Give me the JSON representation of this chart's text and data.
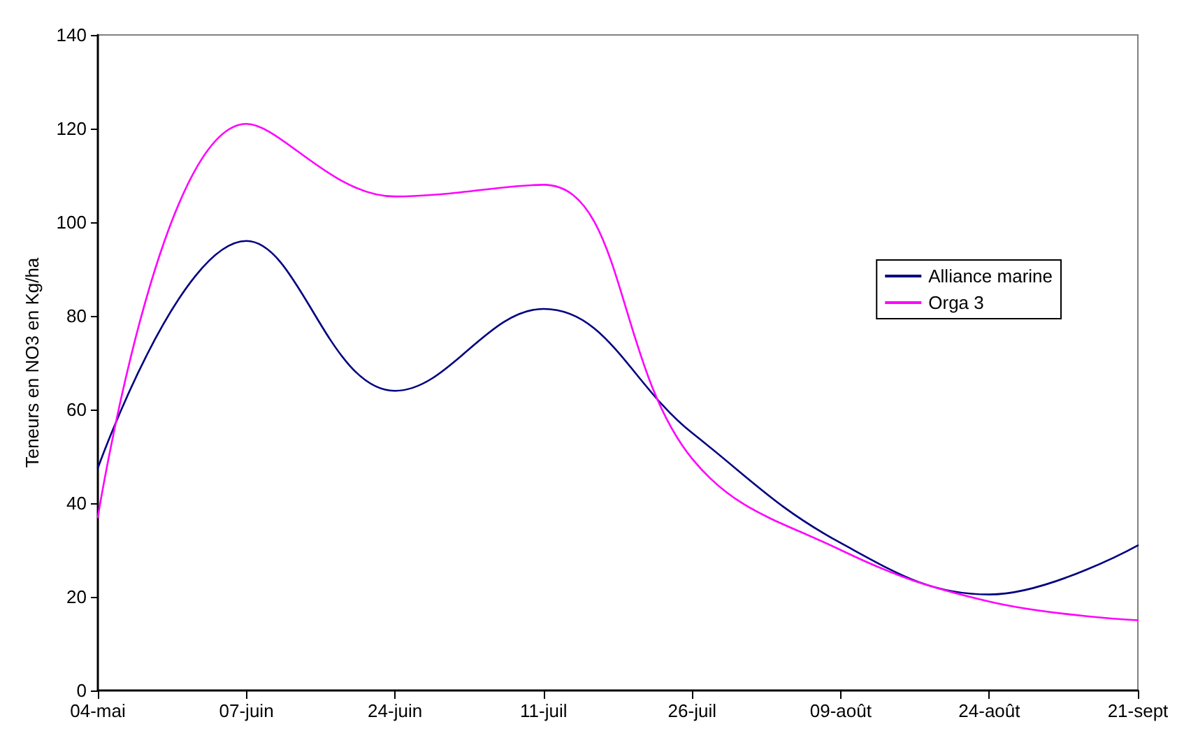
{
  "chart_data": {
    "type": "line",
    "ylabel": "Teneurs en NO3 en Kg/ha",
    "categories": [
      "04-mai",
      "07-juin",
      "24-juin",
      "11-juil",
      "26-juil",
      "09-août",
      "24-août",
      "21-sept"
    ],
    "series": [
      {
        "name": "Alliance marine",
        "color": "#000080",
        "values": [
          47.5,
          96,
          64,
          81.5,
          55,
          31.5,
          20.5,
          31
        ]
      },
      {
        "name": "Orga 3",
        "color": "#ff00ff",
        "values": [
          37,
          121,
          105.5,
          108,
          49.5,
          30,
          19,
          15
        ]
      }
    ],
    "ylim": [
      0,
      140
    ],
    "yticks": [
      0,
      20,
      40,
      60,
      80,
      100,
      120,
      140
    ],
    "grid": false,
    "legend": "right",
    "marker": "none",
    "line_style": "solid"
  }
}
